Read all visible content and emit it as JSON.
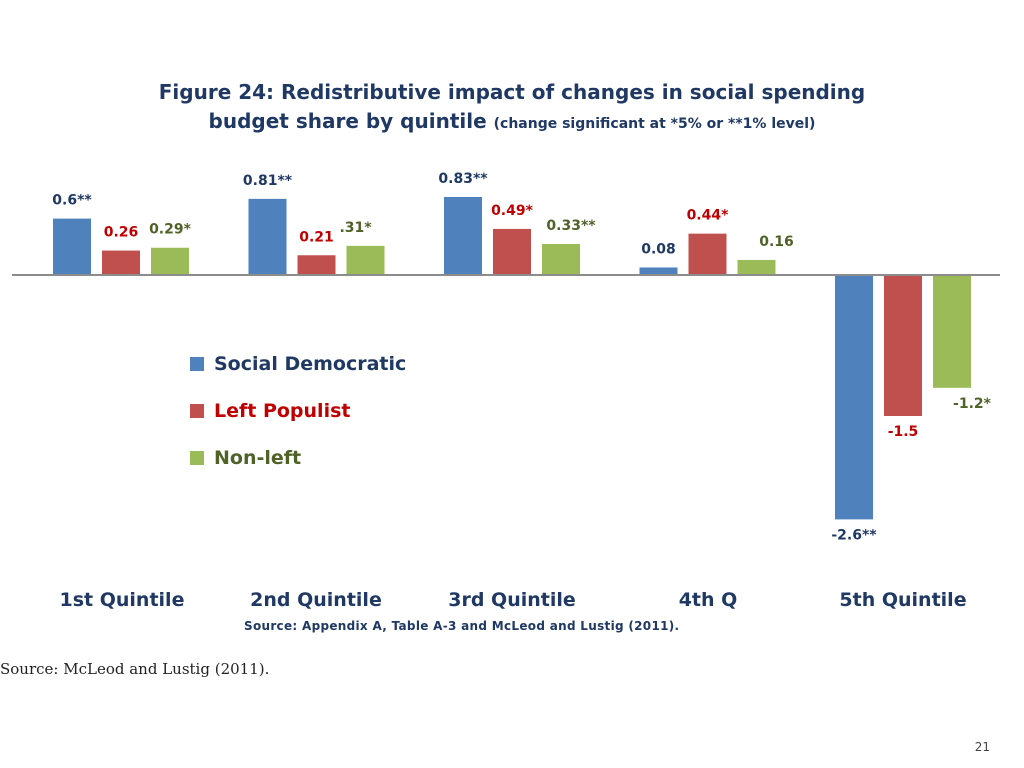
{
  "title": {
    "main": "Figure 24: Redistributive impact of changes in social spending",
    "line2": "budget share by quintile",
    "note": "(change significant at *5% or **1% level)"
  },
  "chart_data": {
    "type": "bar",
    "title": "Figure 24: Redistributive impact of changes in social spending budget share by quintile (change significant at *5% or **1% level)",
    "categories": [
      "1st Quintile",
      "2nd Quintile",
      "3rd Quintile",
      "4th Q",
      "5th Quintile"
    ],
    "series": [
      {
        "name": "Social Democratic",
        "color": "#4f81bd",
        "values": [
          0.6,
          0.81,
          0.83,
          0.08,
          -2.6
        ],
        "labels": [
          "0.6**",
          "0.81**",
          "0.83**",
          "0.08",
          "-2.6**"
        ],
        "label_colors": [
          "#1f3864",
          "#1f3864",
          "#1f3864",
          "#1f3864",
          "#1f3864"
        ]
      },
      {
        "name": "Left Populist",
        "color": "#c0504d",
        "values": [
          0.26,
          0.21,
          0.49,
          0.44,
          -1.5
        ],
        "labels": [
          "0.26",
          "0.21",
          "0.49*",
          "0.44*",
          "-1.5"
        ],
        "label_colors": [
          "#c00000",
          "#c00000",
          "#c00000",
          "#c00000",
          "#c00000"
        ]
      },
      {
        "name": "Non-left",
        "color": "#9bbb59",
        "values": [
          0.29,
          0.31,
          0.33,
          0.16,
          -1.2
        ],
        "labels": [
          "0.29*",
          ".31*",
          "0.33**",
          "0.16",
          "-1.2*"
        ],
        "label_colors": [
          "#4f6228",
          "#4f6228",
          "#4f6228",
          "#4f6228",
          "#4f6228"
        ]
      }
    ],
    "ylim": [
      -2.6,
      0.83
    ],
    "legend": {
      "position": "center-left"
    }
  },
  "legend": {
    "items": [
      {
        "label": "Social Democratic",
        "color": "#4f81bd",
        "text_color": "#1f3864"
      },
      {
        "label": "Left Populist",
        "color": "#c0504d",
        "text_color": "#c00000"
      },
      {
        "label": "Non-left",
        "color": "#9bbb59",
        "text_color": "#4f6228"
      }
    ]
  },
  "source_inner": "Source: Appendix A, Table A-3 and McLeod and Lustig (2011).",
  "source_outer": "Source: McLeod and Lustig (2011).",
  "page_number": "21",
  "colors": {
    "axis_text": "#1f3864",
    "axis_line": "#8c8c8c"
  }
}
